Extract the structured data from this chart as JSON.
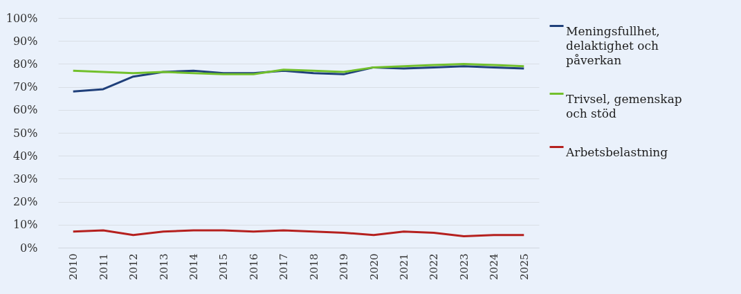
{
  "chart_data": {
    "type": "line",
    "categories": [
      "2010",
      "2011",
      "2012",
      "2013",
      "2014",
      "2015",
      "2016",
      "2017",
      "2018",
      "2019",
      "2020",
      "2021",
      "2022",
      "2023",
      "2024",
      "2025"
    ],
    "series": [
      {
        "name": "Meningsfullhet, delaktighet och påverkan",
        "color": "#1f3f7a",
        "values": [
          68,
          69,
          74.5,
          76.5,
          77,
          76,
          76,
          77,
          76,
          75.5,
          78.5,
          78,
          78.5,
          79,
          78.5,
          78
        ]
      },
      {
        "name": "Trivsel, gemenskap och stöd",
        "color": "#72c02c",
        "values": [
          77,
          76.5,
          76,
          76.5,
          76,
          75.5,
          75.5,
          77.5,
          77,
          76.5,
          78.5,
          79,
          79.5,
          80,
          79.5,
          79
        ]
      },
      {
        "name": "Arbetsbelastning",
        "color": "#b5201e",
        "values": [
          7,
          7.5,
          5.5,
          7,
          7.5,
          7.5,
          7,
          7.5,
          7,
          6.5,
          5.5,
          7,
          6.5,
          5,
          5.5,
          5.5
        ]
      }
    ],
    "ylim": [
      0,
      100
    ],
    "yticks": [
      {
        "value": 0,
        "label": "0%"
      },
      {
        "value": 10,
        "label": "10%"
      },
      {
        "value": 20,
        "label": "20%"
      },
      {
        "value": 30,
        "label": "30%"
      },
      {
        "value": 40,
        "label": "40%"
      },
      {
        "value": 50,
        "label": "50%"
      },
      {
        "value": 60,
        "label": "60%"
      },
      {
        "value": 70,
        "label": "70%"
      },
      {
        "value": 80,
        "label": "80%"
      },
      {
        "value": 90,
        "label": "90%"
      },
      {
        "value": 100,
        "label": "100%"
      }
    ],
    "grid": "y",
    "legend": "right",
    "marker": "none",
    "line_style": "solid"
  }
}
